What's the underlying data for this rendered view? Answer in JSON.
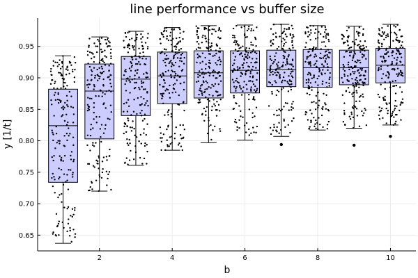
{
  "chart_data": {
    "type": "box",
    "title": "line performance vs buffer size",
    "xlabel": "b",
    "ylabel": "y [1/t]",
    "xlim": [
      0.3,
      10.7
    ],
    "ylim": [
      0.625,
      0.995
    ],
    "x_ticks": [
      2,
      4,
      6,
      8,
      10
    ],
    "y_ticks": [
      0.65,
      0.7,
      0.75,
      0.8,
      0.85,
      0.9,
      0.95
    ],
    "grid": true,
    "legend": "none",
    "colors": {
      "box_fill": "#ccccff",
      "box_stroke": "#000000",
      "point": "#000000",
      "grid": "#ececec",
      "axis": "#000000"
    },
    "series": [
      {
        "x": 1,
        "whisker_low": 0.637,
        "q1": 0.734,
        "median": 0.824,
        "q3": 0.882,
        "whisker_high": 0.935,
        "outliers": []
      },
      {
        "x": 2,
        "whisker_low": 0.72,
        "q1": 0.803,
        "median": 0.879,
        "q3": 0.922,
        "whisker_high": 0.965,
        "outliers": []
      },
      {
        "x": 3,
        "whisker_low": 0.761,
        "q1": 0.84,
        "median": 0.898,
        "q3": 0.934,
        "whisker_high": 0.974,
        "outliers": []
      },
      {
        "x": 4,
        "whisker_low": 0.785,
        "q1": 0.859,
        "median": 0.903,
        "q3": 0.941,
        "whisker_high": 0.98,
        "outliers": []
      },
      {
        "x": 5,
        "whisker_low": 0.797,
        "q1": 0.868,
        "median": 0.908,
        "q3": 0.943,
        "whisker_high": 0.983,
        "outliers": []
      },
      {
        "x": 6,
        "whisker_low": 0.801,
        "q1": 0.876,
        "median": 0.912,
        "q3": 0.943,
        "whisker_high": 0.984,
        "outliers": []
      },
      {
        "x": 7,
        "whisker_low": 0.807,
        "q1": 0.886,
        "median": 0.913,
        "q3": 0.944,
        "whisker_high": 0.985,
        "outliers": [
          0.794
        ]
      },
      {
        "x": 8,
        "whisker_low": 0.817,
        "q1": 0.885,
        "median": 0.916,
        "q3": 0.945,
        "whisker_high": 0.983,
        "outliers": []
      },
      {
        "x": 9,
        "whisker_low": 0.82,
        "q1": 0.889,
        "median": 0.916,
        "q3": 0.944,
        "whisker_high": 0.982,
        "outliers": [
          0.793
        ]
      },
      {
        "x": 10,
        "whisker_low": 0.825,
        "q1": 0.892,
        "median": 0.92,
        "q3": 0.947,
        "whisker_high": 0.985,
        "outliers": [
          0.807
        ]
      }
    ]
  }
}
